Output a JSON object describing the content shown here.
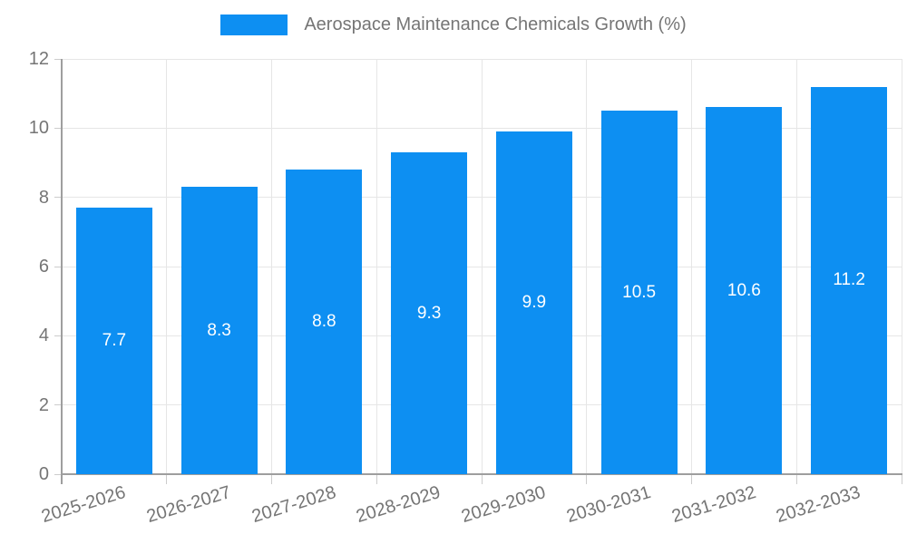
{
  "legend": {
    "label": "Aerospace Maintenance Chemicals Growth (%)"
  },
  "colors": {
    "bar": "#0d8ff2",
    "grid": "#e6e6e6",
    "axis": "#9e9e9e",
    "tick": "#cccccc",
    "text": "#757575",
    "bar_label": "#ffffff",
    "background": "#ffffff"
  },
  "chart_data": {
    "type": "bar",
    "title": "",
    "xlabel": "",
    "ylabel": "",
    "categories": [
      "2025-2026",
      "2026-2027",
      "2027-2028",
      "2028-2029",
      "2029-2030",
      "2030-2031",
      "2031-2032",
      "2032-2033"
    ],
    "series": [
      {
        "name": "Aerospace Maintenance Chemicals Growth (%)",
        "values": [
          7.7,
          8.3,
          8.8,
          9.3,
          9.9,
          10.5,
          10.6,
          11.2
        ]
      }
    ],
    "bar_labels": [
      "7.7",
      "8.3",
      "8.8",
      "9.3",
      "9.9",
      "10.5",
      "10.6",
      "11.2"
    ],
    "ylim": [
      0,
      12
    ],
    "yticks": [
      0,
      2,
      4,
      6,
      8,
      10,
      12
    ],
    "grid": true,
    "legend_position": "top",
    "x_tick_rotation_deg": -17
  }
}
